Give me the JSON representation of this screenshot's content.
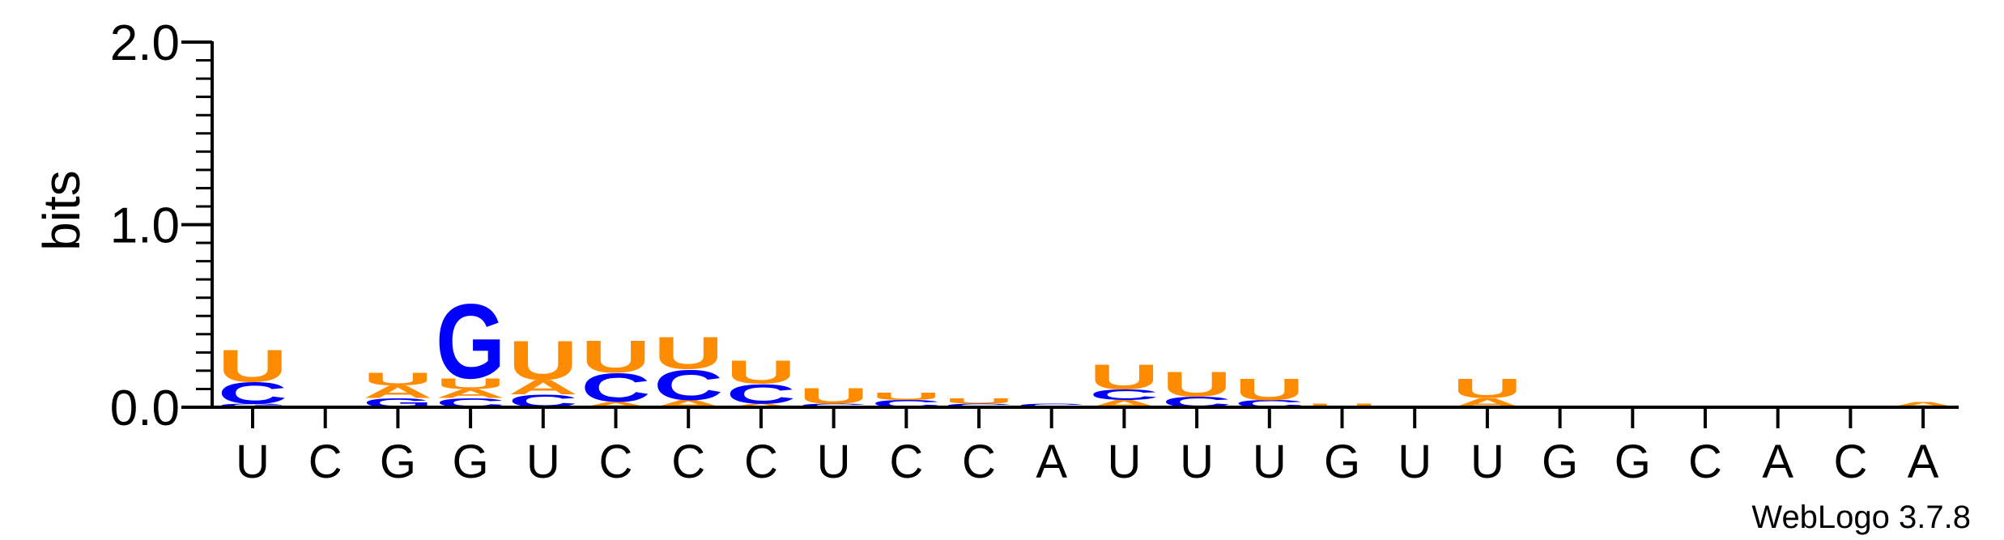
{
  "chart_data": {
    "type": "sequence-logo",
    "ylabel": "bits",
    "ylim": [
      0,
      2
    ],
    "yticks": [
      "0.0",
      "1.0",
      "2.0"
    ],
    "credit": "WebLogo 3.7.8",
    "colors": {
      "U": "#ff8c00",
      "C": "#0000ff",
      "G": "#0000ff",
      "A": "#ff8c00",
      "axis": "#000000"
    },
    "positions": [
      {
        "label": "U",
        "stack": [
          {
            "letter": "G",
            "bits": 0.02
          },
          {
            "letter": "C",
            "bits": 0.12
          },
          {
            "letter": "U",
            "bits": 0.18
          }
        ]
      },
      {
        "label": "C",
        "stack": [
          {
            "letter": "G",
            "bits": 0.01
          }
        ]
      },
      {
        "label": "G",
        "stack": [
          {
            "letter": "G",
            "bits": 0.05
          },
          {
            "letter": "A",
            "bits": 0.07
          },
          {
            "letter": "U",
            "bits": 0.07
          }
        ]
      },
      {
        "label": "G",
        "stack": [
          {
            "letter": "C",
            "bits": 0.05
          },
          {
            "letter": "A",
            "bits": 0.05
          },
          {
            "letter": "U",
            "bits": 0.06
          },
          {
            "letter": "G",
            "bits": 0.42
          }
        ]
      },
      {
        "label": "U",
        "stack": [
          {
            "letter": "C",
            "bits": 0.07
          },
          {
            "letter": "A",
            "bits": 0.08
          },
          {
            "letter": "U",
            "bits": 0.22
          }
        ]
      },
      {
        "label": "C",
        "stack": [
          {
            "letter": "A",
            "bits": 0.03
          },
          {
            "letter": "C",
            "bits": 0.16
          },
          {
            "letter": "U",
            "bits": 0.18
          }
        ]
      },
      {
        "label": "C",
        "stack": [
          {
            "letter": "A",
            "bits": 0.04
          },
          {
            "letter": "C",
            "bits": 0.17
          },
          {
            "letter": "U",
            "bits": 0.18
          }
        ]
      },
      {
        "label": "C",
        "stack": [
          {
            "letter": "A",
            "bits": 0.02
          },
          {
            "letter": "C",
            "bits": 0.11
          },
          {
            "letter": "U",
            "bits": 0.13
          }
        ]
      },
      {
        "label": "U",
        "stack": [
          {
            "letter": "C",
            "bits": 0.02
          },
          {
            "letter": "U",
            "bits": 0.09
          }
        ]
      },
      {
        "label": "C",
        "stack": [
          {
            "letter": "C",
            "bits": 0.04
          },
          {
            "letter": "U",
            "bits": 0.04
          }
        ]
      },
      {
        "label": "C",
        "stack": [
          {
            "letter": "C",
            "bits": 0.02
          },
          {
            "letter": "U",
            "bits": 0.03
          }
        ]
      },
      {
        "label": "A",
        "stack": [
          {
            "letter": "C",
            "bits": 0.02
          }
        ]
      },
      {
        "label": "U",
        "stack": [
          {
            "letter": "A",
            "bits": 0.04
          },
          {
            "letter": "C",
            "bits": 0.06
          },
          {
            "letter": "U",
            "bits": 0.14
          }
        ]
      },
      {
        "label": "U",
        "stack": [
          {
            "letter": "C",
            "bits": 0.06
          },
          {
            "letter": "U",
            "bits": 0.14
          }
        ]
      },
      {
        "label": "U",
        "stack": [
          {
            "letter": "C",
            "bits": 0.04
          },
          {
            "letter": "U",
            "bits": 0.12
          }
        ]
      },
      {
        "label": "G",
        "stack": [
          {
            "letter": "U",
            "bits": 0.02
          }
        ]
      },
      {
        "label": "U",
        "stack": [
          {
            "letter": "C",
            "bits": 0.01
          }
        ]
      },
      {
        "label": "U",
        "stack": [
          {
            "letter": "A",
            "bits": 0.05
          },
          {
            "letter": "U",
            "bits": 0.11
          }
        ]
      },
      {
        "label": "G",
        "stack": []
      },
      {
        "label": "G",
        "stack": []
      },
      {
        "label": "C",
        "stack": [
          {
            "letter": "A",
            "bits": 0.01
          }
        ]
      },
      {
        "label": "A",
        "stack": []
      },
      {
        "label": "C",
        "stack": []
      },
      {
        "label": "A",
        "stack": [
          {
            "letter": "A",
            "bits": 0.03
          }
        ]
      }
    ]
  }
}
